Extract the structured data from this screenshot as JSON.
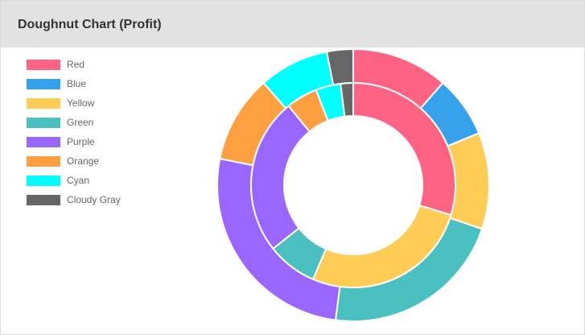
{
  "header": {
    "title": "Doughnut Chart (Profit)"
  },
  "chart_data": {
    "type": "doughnut",
    "title": "Doughnut Chart (Profit)",
    "legend_position": "top-left",
    "categories": [
      "Red",
      "Blue",
      "Yellow",
      "Green",
      "Purple",
      "Orange",
      "Cyan",
      "Cloudy Gray"
    ],
    "colors": [
      "#ff6384",
      "#36a2eb",
      "#ffcd56",
      "#4bc0c0",
      "#9966ff",
      "#ff9f40",
      "#00ffff",
      "#666666"
    ],
    "series": [
      {
        "values": [
          11,
          7,
          11,
          21,
          25,
          10,
          8,
          3
        ]
      },
      {
        "values": [
          30,
          0,
          27,
          8,
          25,
          5,
          4,
          2
        ]
      }
    ]
  }
}
